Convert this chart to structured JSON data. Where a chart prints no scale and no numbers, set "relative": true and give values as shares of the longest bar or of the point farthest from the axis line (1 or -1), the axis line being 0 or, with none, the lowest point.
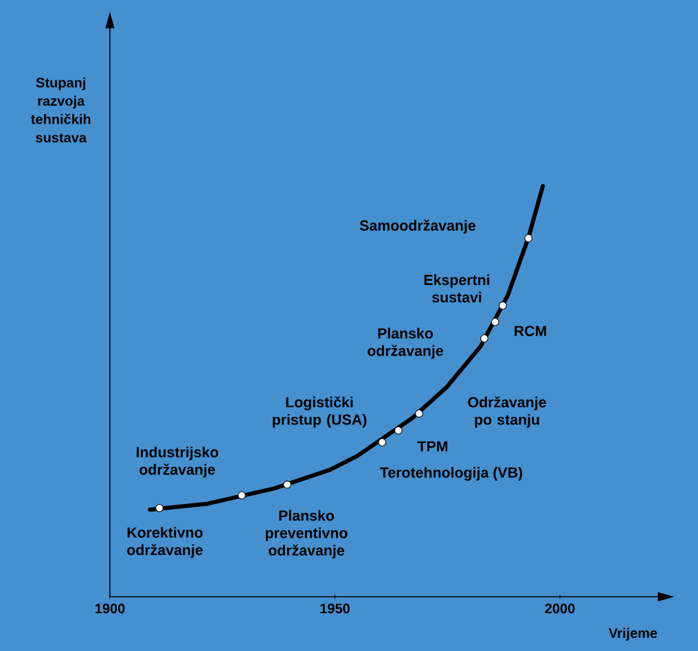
{
  "chart_data": {
    "type": "line",
    "xlabel": "Vrijeme",
    "ylabel": "Stupanj razvoja tehničkih sustava",
    "relative": true,
    "xlim": [
      1900,
      2025
    ],
    "xticks": [
      1900,
      1950,
      2000
    ],
    "series": [
      {
        "color": "#000000",
        "marker": "none",
        "x": [
          1908.9,
          1921.4,
          1936.6,
          1948.9,
          1955.0,
          1967.2,
          1974.8,
          1982.4,
          1988.5,
          1993.1,
          1996.2
        ],
        "values": [
          0.212,
          0.226,
          0.264,
          0.309,
          0.343,
          0.435,
          0.51,
          0.61,
          0.736,
          0.878,
          1.0
        ]
      },
      {
        "type": "scatter",
        "color": "#ffffff",
        "marker": "circle",
        "x": [
          1911.0,
          1929.3,
          1939.4,
          1960.5,
          1964.1,
          1968.7,
          1983.2,
          1985.6,
          1987.3,
          1993.0
        ],
        "values": [
          0.216,
          0.247,
          0.273,
          0.376,
          0.405,
          0.446,
          0.629,
          0.669,
          0.709,
          0.873
        ]
      }
    ],
    "annotations": [
      "Samoodržavanje",
      "Ekspertni sustavi",
      "RCM",
      "Plansko održavanje",
      "Održavanje po stanju",
      "Logistički pristup (USA)",
      "TPM",
      "Terotehnologija (VB)",
      "Industrijsko održavanje",
      "Plansko preventivno održavanje",
      "Korektivno održavanje"
    ]
  }
}
